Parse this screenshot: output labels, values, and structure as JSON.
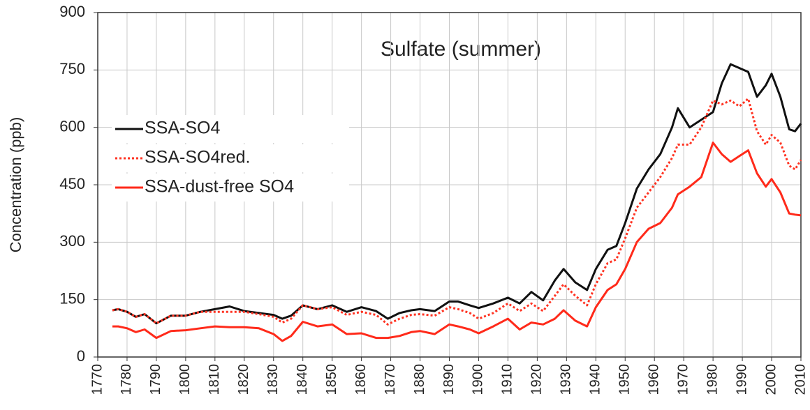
{
  "chart_data": {
    "type": "line",
    "title": "Sulfate (summer)",
    "y_label": "Concentration (ppb)",
    "x": [
      1775,
      1777,
      1780,
      1783,
      1786,
      1790,
      1795,
      1800,
      1805,
      1810,
      1815,
      1820,
      1825,
      1830,
      1833,
      1836,
      1840,
      1845,
      1850,
      1855,
      1860,
      1865,
      1869,
      1873,
      1877,
      1880,
      1885,
      1890,
      1893,
      1897,
      1900,
      1905,
      1910,
      1914,
      1918,
      1922,
      1926,
      1929,
      1933,
      1937,
      1940,
      1944,
      1947,
      1950,
      1954,
      1958,
      1962,
      1966,
      1968,
      1972,
      1976,
      1980,
      1983,
      1986,
      1989,
      1992,
      1995,
      1998,
      2000,
      2003,
      2006,
      2008,
      2010
    ],
    "series": [
      {
        "name": "SSA-SO4",
        "color": "#111111",
        "dash": "solid",
        "values": [
          122,
          125,
          118,
          105,
          112,
          88,
          108,
          108,
          118,
          125,
          132,
          120,
          115,
          110,
          100,
          108,
          135,
          125,
          135,
          118,
          130,
          120,
          100,
          115,
          122,
          125,
          120,
          145,
          145,
          135,
          128,
          140,
          155,
          140,
          170,
          148,
          200,
          230,
          195,
          175,
          230,
          280,
          290,
          350,
          440,
          490,
          530,
          600,
          650,
          600,
          620,
          640,
          715,
          765,
          755,
          745,
          680,
          710,
          740,
          680,
          595,
          590,
          610
        ]
      },
      {
        "name": "SSA-SO4red.",
        "color": "#ff3322",
        "dash": "dotted",
        "values": [
          122,
          125,
          118,
          105,
          112,
          88,
          108,
          108,
          118,
          118,
          118,
          118,
          112,
          105,
          90,
          100,
          135,
          125,
          130,
          110,
          118,
          110,
          85,
          100,
          110,
          112,
          108,
          130,
          125,
          115,
          100,
          115,
          140,
          120,
          140,
          120,
          160,
          190,
          160,
          135,
          190,
          245,
          255,
          310,
          390,
          430,
          470,
          520,
          555,
          555,
          600,
          670,
          660,
          670,
          655,
          675,
          590,
          555,
          580,
          560,
          500,
          490,
          515
        ]
      },
      {
        "name": "SSA-dust-free SO4",
        "color": "#ff2a1a",
        "dash": "solid",
        "values": [
          80,
          80,
          75,
          65,
          72,
          50,
          68,
          70,
          75,
          80,
          78,
          78,
          75,
          60,
          42,
          55,
          92,
          80,
          85,
          60,
          62,
          50,
          50,
          55,
          65,
          68,
          60,
          85,
          80,
          72,
          62,
          80,
          100,
          72,
          90,
          85,
          100,
          122,
          95,
          80,
          130,
          175,
          190,
          230,
          300,
          335,
          350,
          390,
          425,
          445,
          470,
          560,
          530,
          510,
          525,
          540,
          480,
          445,
          465,
          430,
          375,
          372,
          370
        ]
      }
    ],
    "xlim": [
      1770,
      2010
    ],
    "xticks": [
      1770,
      1780,
      1790,
      1800,
      1810,
      1820,
      1830,
      1840,
      1850,
      1860,
      1870,
      1880,
      1890,
      1900,
      1910,
      1920,
      1930,
      1940,
      1950,
      1960,
      1970,
      1980,
      1990,
      2000,
      2010
    ],
    "ylim": [
      0,
      900
    ],
    "yticks": [
      0,
      150,
      300,
      450,
      600,
      750,
      900
    ],
    "grid": true,
    "legend": "upper left"
  }
}
